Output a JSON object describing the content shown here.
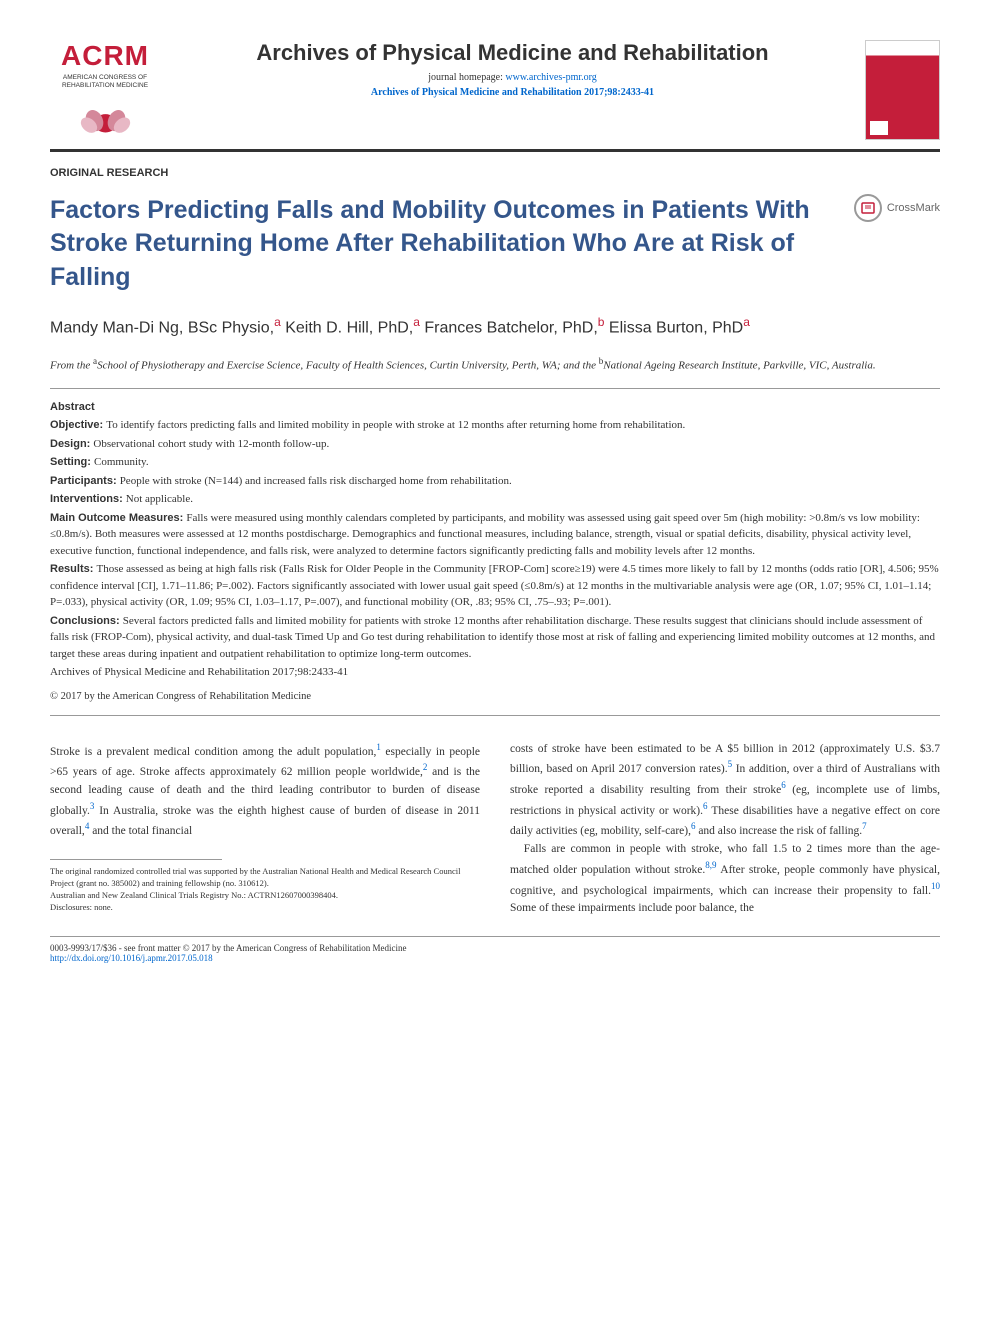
{
  "logo": {
    "text": "ACRM",
    "subtitle": "AMERICAN CONGRESS OF\nREHABILITATION MEDICINE"
  },
  "journal": {
    "name": "Archives of Physical Medicine and Rehabilitation",
    "homepage_label": "journal homepage:",
    "homepage_url": "www.archives-pmr.org",
    "citation": "Archives of Physical Medicine and Rehabilitation 2017;98:2433-41"
  },
  "article_type": "ORIGINAL RESEARCH",
  "title": "Factors Predicting Falls and Mobility Outcomes in Patients With Stroke Returning Home After Rehabilitation Who Are at Risk of Falling",
  "crossmark": "CrossMark",
  "authors_html": "Mandy Man-Di Ng, BSc Physio,<sup>a</sup> Keith D. Hill, PhD,<sup>a</sup> Frances Batchelor, PhD,<sup>b</sup> Elissa Burton, PhD<sup>a</sup>",
  "affiliations_html": "From the <sup>a</sup>School of Physiotherapy and Exercise Science, Faculty of Health Sciences, Curtin University, Perth, WA; and the <sup>b</sup>National Ageing Research Institute, Parkville, VIC, Australia.",
  "abstract": {
    "heading": "Abstract",
    "rows": [
      {
        "label": "Objective:",
        "text": "To identify factors predicting falls and limited mobility in people with stroke at 12 months after returning home from rehabilitation."
      },
      {
        "label": "Design:",
        "text": "Observational cohort study with 12-month follow-up."
      },
      {
        "label": "Setting:",
        "text": "Community."
      },
      {
        "label": "Participants:",
        "text": "People with stroke (N=144) and increased falls risk discharged home from rehabilitation."
      },
      {
        "label": "Interventions:",
        "text": "Not applicable."
      },
      {
        "label": "Main Outcome Measures:",
        "text": "Falls were measured using monthly calendars completed by participants, and mobility was assessed using gait speed over 5m (high mobility: >0.8m/s vs low mobility: ≤0.8m/s). Both measures were assessed at 12 months postdischarge. Demographics and functional measures, including balance, strength, visual or spatial deficits, disability, physical activity level, executive function, functional independence, and falls risk, were analyzed to determine factors significantly predicting falls and mobility levels after 12 months."
      },
      {
        "label": "Results:",
        "text": "Those assessed as being at high falls risk (Falls Risk for Older People in the Community [FROP-Com] score≥19) were 4.5 times more likely to fall by 12 months (odds ratio [OR], 4.506; 95% confidence interval [CI], 1.71–11.86; P=.002). Factors significantly associated with lower usual gait speed (≤0.8m/s) at 12 months in the multivariable analysis were age (OR, 1.07; 95% CI, 1.01–1.14; P=.033), physical activity (OR, 1.09; 95% CI, 1.03–1.17, P=.007), and functional mobility (OR, .83; 95% CI, .75–.93; P=.001)."
      },
      {
        "label": "Conclusions:",
        "text": "Several factors predicted falls and limited mobility for patients with stroke 12 months after rehabilitation discharge. These results suggest that clinicians should include assessment of falls risk (FROP-Com), physical activity, and dual-task Timed Up and Go test during rehabilitation to identify those most at risk of falling and experiencing limited mobility outcomes at 12 months, and target these areas during inpatient and outpatient rehabilitation to optimize long-term outcomes."
      }
    ],
    "archive_line": "Archives of Physical Medicine and Rehabilitation 2017;98:2433-41",
    "copyright": "© 2017 by the American Congress of Rehabilitation Medicine"
  },
  "body": {
    "left": "Stroke is a prevalent medical condition among the adult population,<sup>1</sup> especially in people >65 years of age. Stroke affects approximately 62 million people worldwide,<sup>2</sup> and is the second leading cause of death and the third leading contributor to burden of disease globally.<sup>3</sup> In Australia, stroke was the eighth highest cause of burden of disease in 2011 overall,<sup>4</sup> and the total financial",
    "right_p1": "costs of stroke have been estimated to be A $5 billion in 2012 (approximately U.S. $3.7 billion, based on April 2017 conversion rates).<sup>5</sup> In addition, over a third of Australians with stroke reported a disability resulting from their stroke<sup>6</sup> (eg, incomplete use of limbs, restrictions in physical activity or work).<sup>6</sup> These disabilities have a negative effect on core daily activities (eg, mobility, self-care),<sup>6</sup> and also increase the risk of falling.<sup>7</sup>",
    "right_p2": "Falls are common in people with stroke, who fall 1.5 to 2 times more than the age-matched older population without stroke.<sup>8,9</sup> After stroke, people commonly have physical, cognitive, and psychological impairments, which can increase their propensity to fall.<sup>10</sup> Some of these impairments include poor balance, the"
  },
  "footnotes": {
    "line1": "The original randomized controlled trial was supported by the Australian National Health and Medical Research Council Project (grant no. 385002) and training fellowship (no. 310612).",
    "line2": "Australian and New Zealand Clinical Trials Registry No.: ACTRN12607000398404.",
    "line3": "Disclosures: none."
  },
  "footer": {
    "line1": "0003-9993/17/$36 - see front matter © 2017 by the American Congress of Rehabilitation Medicine",
    "doi": "http://dx.doi.org/10.1016/j.apmr.2017.05.018"
  },
  "colors": {
    "brand_red": "#c41e3a",
    "title_blue": "#34568b",
    "link_blue": "#0066cc"
  }
}
